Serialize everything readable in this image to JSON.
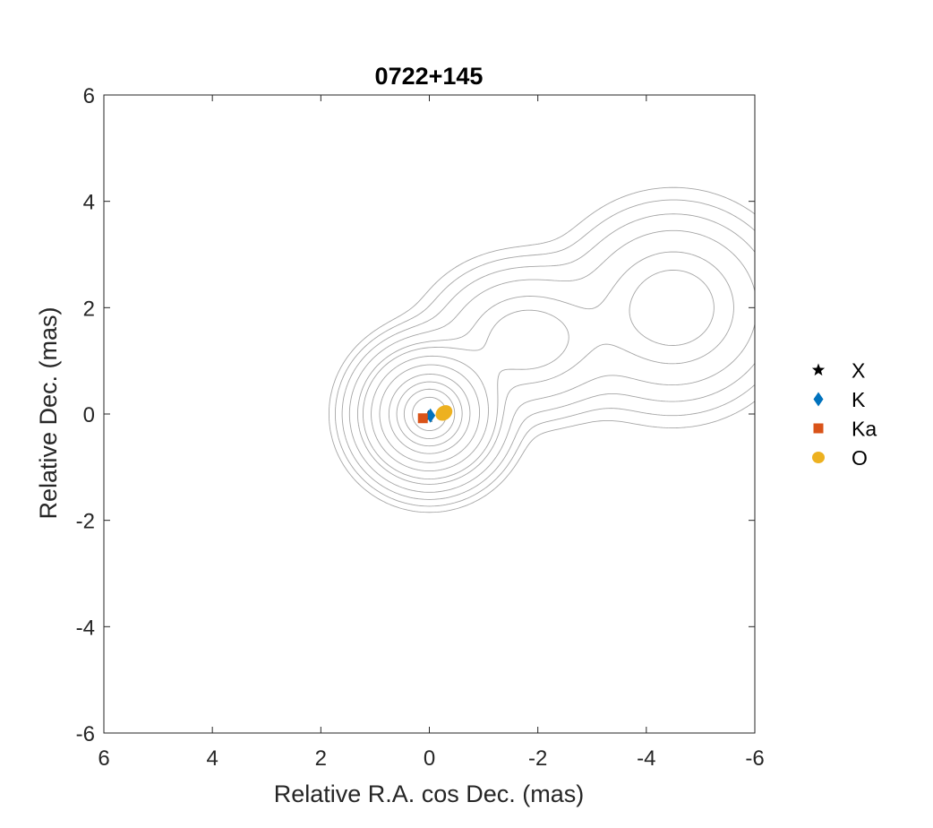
{
  "chart_data": {
    "type": "scatter",
    "title": "0722+145",
    "xlabel": "Relative R.A. cos Dec. (mas)",
    "ylabel": "Relative Dec. (mas)",
    "xlim": [
      6,
      -6
    ],
    "ylim": [
      -6,
      6
    ],
    "x_reversed": true,
    "xticks": [
      6,
      4,
      2,
      0,
      -2,
      -4,
      -6
    ],
    "yticks": [
      -6,
      -4,
      -2,
      0,
      2,
      4,
      6
    ],
    "grid": false,
    "legend_position": "right-outside",
    "contour_color": "#a6a6a6",
    "contours": {
      "components": [
        {
          "x": 0,
          "y": 0,
          "sx": 0.55,
          "sy": 0.55,
          "amp": 1.0
        },
        {
          "x": -1.8,
          "y": 1.4,
          "sx": 0.8,
          "sy": 0.65,
          "amp": 0.12
        },
        {
          "x": -4.5,
          "y": 2.0,
          "sx": 0.9,
          "sy": 0.85,
          "amp": 0.12
        }
      ],
      "levels": [
        0.0035,
        0.007,
        0.014,
        0.028,
        0.056,
        0.085,
        0.15,
        0.25,
        0.4,
        0.55,
        0.7,
        0.85
      ]
    },
    "series": [
      {
        "name": "X",
        "marker": "star",
        "color": "#000000",
        "points": [
          [
            0.02,
            -0.05
          ]
        ]
      },
      {
        "name": "K",
        "marker": "diamond",
        "color": "#0072bd",
        "points": [
          [
            -0.02,
            -0.03
          ]
        ]
      },
      {
        "name": "Ka",
        "marker": "square",
        "color": "#d95319",
        "points": [
          [
            0.12,
            -0.08
          ]
        ]
      },
      {
        "name": "O",
        "marker": "circle",
        "color": "#edb120",
        "points": [
          [
            -0.27,
            0.02
          ]
        ]
      }
    ]
  }
}
